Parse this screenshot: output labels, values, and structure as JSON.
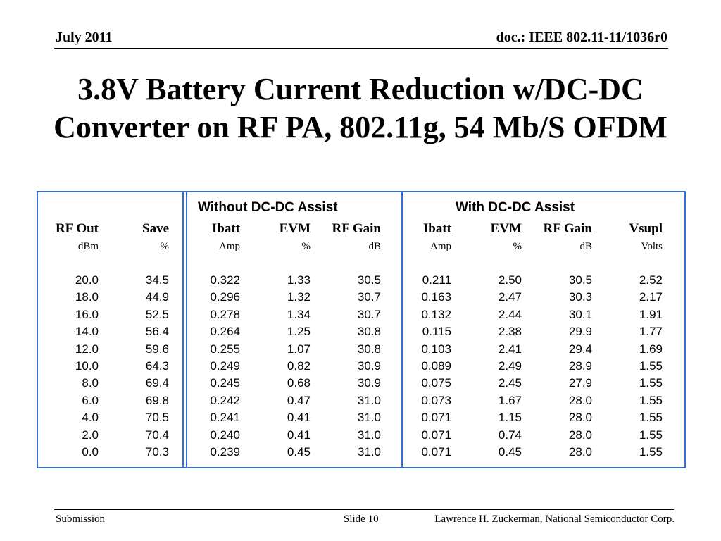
{
  "header": {
    "date": "July 2011",
    "doc": "doc.: IEEE 802.11-11/1036r0"
  },
  "title": {
    "line1": "3.8V Battery Current Reduction w/DC-DC",
    "line2": "Converter on RF PA, 802.11g, 54 Mb/S OFDM"
  },
  "table": {
    "group_without": "Without DC-DC Assist",
    "group_with": "With DC-DC Assist",
    "columns": [
      "RF Out",
      "Save",
      "Ibatt",
      "EVM",
      "RF Gain",
      "Ibatt",
      "EVM",
      "RF Gain",
      "Vsupl"
    ],
    "units": [
      "dBm",
      "%",
      "Amp",
      "%",
      "dB",
      "Amp",
      "%",
      "dB",
      "Volts"
    ],
    "rows": [
      [
        "20.0",
        "34.5",
        "0.322",
        "1.33",
        "30.5",
        "0.211",
        "2.50",
        "30.5",
        "2.52"
      ],
      [
        "18.0",
        "44.9",
        "0.296",
        "1.32",
        "30.7",
        "0.163",
        "2.47",
        "30.3",
        "2.17"
      ],
      [
        "16.0",
        "52.5",
        "0.278",
        "1.34",
        "30.7",
        "0.132",
        "2.44",
        "30.1",
        "1.91"
      ],
      [
        "14.0",
        "56.4",
        "0.264",
        "1.25",
        "30.8",
        "0.115",
        "2.38",
        "29.9",
        "1.77"
      ],
      [
        "12.0",
        "59.6",
        "0.255",
        "1.07",
        "30.8",
        "0.103",
        "2.41",
        "29.4",
        "1.69"
      ],
      [
        "10.0",
        "64.3",
        "0.249",
        "0.82",
        "30.9",
        "0.089",
        "2.49",
        "28.9",
        "1.55"
      ],
      [
        "8.0",
        "69.4",
        "0.245",
        "0.68",
        "30.9",
        "0.075",
        "2.45",
        "27.9",
        "1.55"
      ],
      [
        "6.0",
        "69.8",
        "0.242",
        "0.47",
        "31.0",
        "0.073",
        "1.67",
        "28.0",
        "1.55"
      ],
      [
        "4.0",
        "70.5",
        "0.241",
        "0.41",
        "31.0",
        "0.071",
        "1.15",
        "28.0",
        "1.55"
      ],
      [
        "2.0",
        "70.4",
        "0.240",
        "0.41",
        "31.0",
        "0.071",
        "0.74",
        "28.0",
        "1.55"
      ],
      [
        "0.0",
        "70.3",
        "0.239",
        "0.45",
        "31.0",
        "0.071",
        "0.45",
        "28.0",
        "1.55"
      ]
    ],
    "border_color": "#2f6fd6"
  },
  "footer": {
    "left": "Submission",
    "slide": "Slide 10",
    "right": "Lawrence H. Zuckerman, National Semiconductor Corp."
  }
}
